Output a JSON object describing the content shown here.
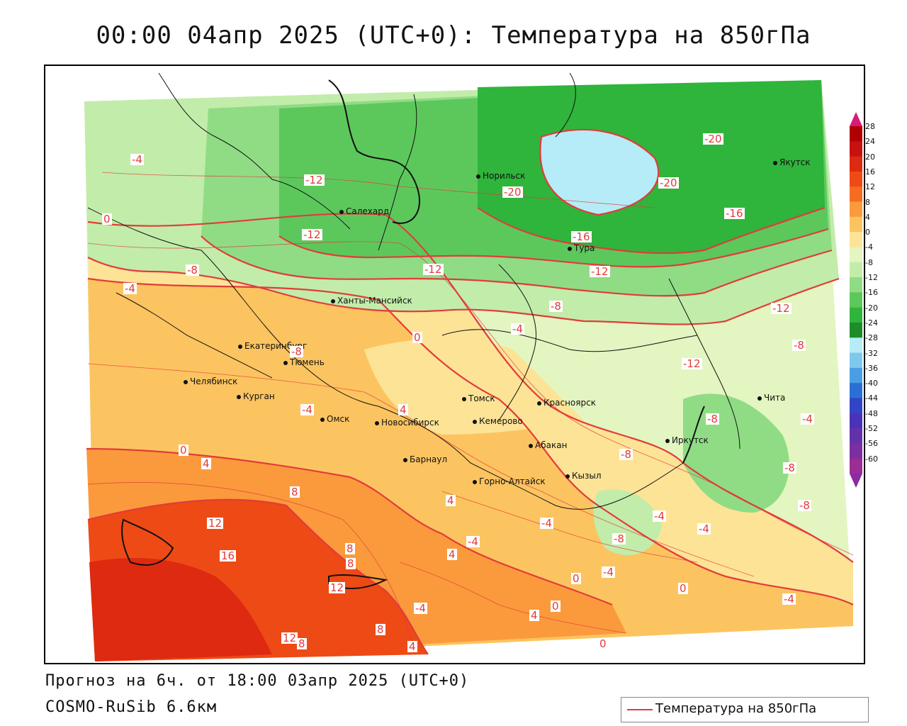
{
  "title": "00:00 04апр 2025 (UTC+0): Температура на 850гПа",
  "forecast_line": "Прогноз на 6ч. от 18:00 03апр 2025 (UTC+0)",
  "model_line": "COSMO-RuSib 6.6км",
  "legend": {
    "label": "Температура на 850гПа",
    "line_color": "#e23b3b"
  },
  "colorbar": {
    "ticks": [
      "28",
      "24",
      "20",
      "16",
      "12",
      "8",
      "4",
      "0",
      "-4",
      "-8",
      "-12",
      "-16",
      "-20",
      "-24",
      "-28",
      "-32",
      "-36",
      "-40",
      "-44",
      "-48",
      "-52",
      "-56",
      "-60"
    ],
    "colors": [
      "#b00000",
      "#c81010",
      "#dd2a10",
      "#ee4a16",
      "#f76c22",
      "#fb9a3c",
      "#fcc460",
      "#fde396",
      "#e3f5c0",
      "#c2ecaa",
      "#8fdc84",
      "#5cc85c",
      "#2fb43c",
      "#1d8c2a",
      "#b6ecf7",
      "#7ec8ee",
      "#4a9fe4",
      "#2a6fd6",
      "#3344c8",
      "#4a33b8",
      "#6432a8",
      "#7b2fa0",
      "#9c2d96"
    ]
  },
  "cities": [
    {
      "name": "Норильск"
    },
    {
      "name": "Якутск"
    },
    {
      "name": "Салехард"
    },
    {
      "name": "Тура"
    },
    {
      "name": "Ханты-Мансийск"
    },
    {
      "name": "Екатеринбург"
    },
    {
      "name": "Тюмень"
    },
    {
      "name": "Челябинск"
    },
    {
      "name": "Курган"
    },
    {
      "name": "Томск"
    },
    {
      "name": "Красноярск"
    },
    {
      "name": "Омск"
    },
    {
      "name": "Новосибирск"
    },
    {
      "name": "Кемерово"
    },
    {
      "name": "Абакан"
    },
    {
      "name": "Иркутск"
    },
    {
      "name": "Барнаул"
    },
    {
      "name": "Горно-Алтайск"
    },
    {
      "name": "Кызыл"
    },
    {
      "name": "Чита"
    }
  ],
  "contour_labels": [
    "-4",
    "0",
    "-4",
    "-8",
    "-12",
    "-12",
    "-20",
    "-20",
    "-20",
    "-16",
    "-16",
    "-12",
    "-12",
    "-8",
    "-4",
    "-12",
    "-8",
    "-8",
    "-12",
    "-8",
    "0",
    "4",
    "-4",
    "0",
    "4",
    "8",
    "12",
    "16",
    "8",
    "4",
    "12",
    "12",
    "8",
    "8",
    "-4",
    "4",
    "-4",
    "-8",
    "-8",
    "-4",
    "-4",
    "-8",
    "-4",
    "-4",
    "-8",
    "-4",
    "0",
    "0",
    "-4",
    "4",
    "0",
    "8",
    "4",
    "0"
  ]
}
